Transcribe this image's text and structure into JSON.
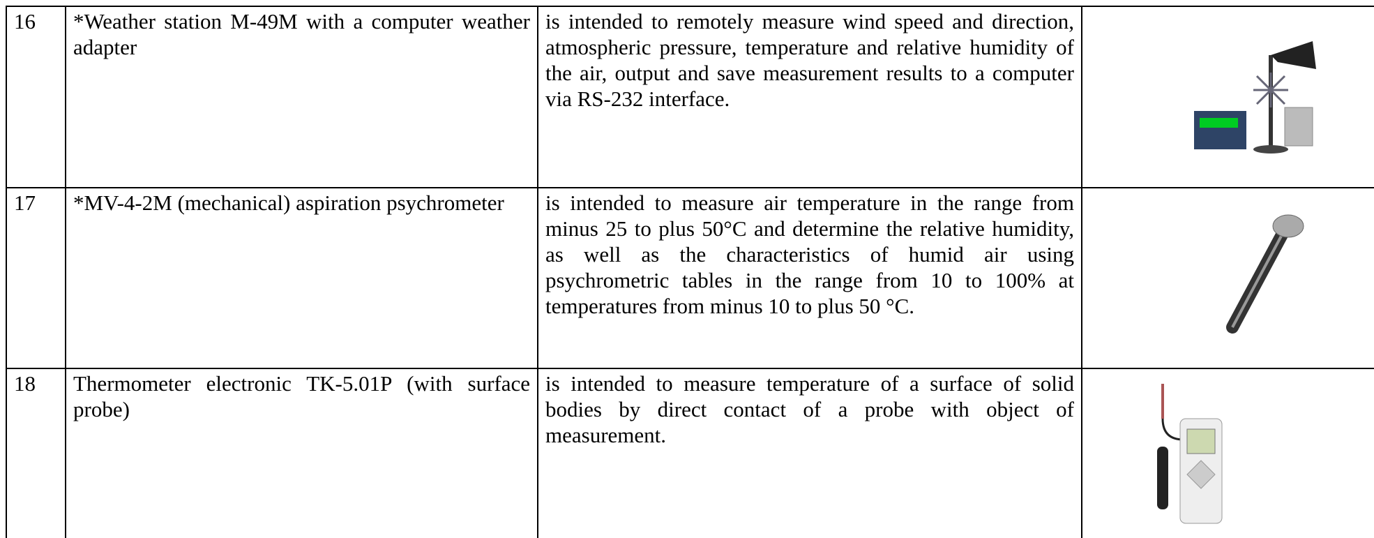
{
  "table": {
    "rows": [
      {
        "number": "16",
        "name": "*Weather station M-49M with a computer weather adapter",
        "description": "is intended to remotely measure wind speed and direction, atmospheric pressure, temperature and relative humidity of the air, output and save measurement results to a computer via RS-232 interface."
      },
      {
        "number": "17",
        "name": "*MV-4-2M (mechanical) aspiration psychrometer",
        "description": "is intended to measure air temperature in the range from minus 25 to plus 50°C and determine the relative humidity, as well as the characteristics of humid air using psychrometric tables in the range from 10 to 100% at temperatures from minus 10 to plus 50 °C."
      },
      {
        "number": "18",
        "name": "Thermometer electronic TK-5.01P (with surface probe)",
        "description": "is intended to measure temperature of a surface of solid bodies by direct contact of a probe with object of measurement."
      }
    ]
  }
}
